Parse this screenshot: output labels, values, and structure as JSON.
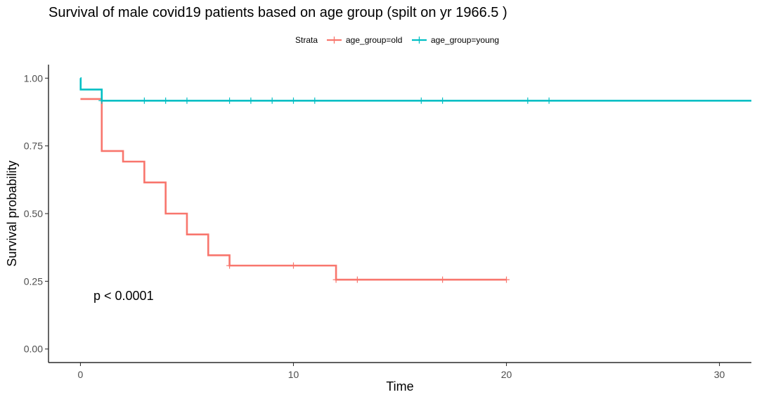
{
  "chart_data": {
    "type": "line",
    "subtype": "kaplan-meier-step",
    "title": "Survival of male covid19 patients based on age group (spilt on yr  1966.5  )",
    "xlabel": "Time",
    "ylabel": "Survival probability",
    "xlim": [
      -1.5,
      31.5
    ],
    "ylim": [
      -0.05,
      1.05
    ],
    "x_ticks": [
      0,
      10,
      20,
      30
    ],
    "y_ticks": [
      0.0,
      0.25,
      0.5,
      0.75,
      1.0
    ],
    "y_tick_labels": [
      "0.00",
      "0.25",
      "0.50",
      "0.75",
      "1.00"
    ],
    "grid": false,
    "legend": {
      "position": "top",
      "title": "Strata",
      "entries": [
        "age_group=old",
        "age_group=young"
      ]
    },
    "annotation": "p < 0.0001",
    "series": [
      {
        "name": "age_group=old",
        "color": "#F8766D",
        "steps": [
          [
            0,
            0.923
          ],
          [
            1,
            0.731
          ],
          [
            2,
            0.692
          ],
          [
            3,
            0.615
          ],
          [
            4,
            0.5
          ],
          [
            5,
            0.423
          ],
          [
            6,
            0.346
          ],
          [
            7,
            0.308
          ],
          [
            12,
            0.256
          ],
          [
            20,
            0.256
          ]
        ],
        "censor_times": [
          7,
          10,
          12,
          13,
          17,
          20
        ]
      },
      {
        "name": "age_group=young",
        "color": "#00BFC4",
        "steps": [
          [
            0,
            1.0
          ],
          [
            0.01,
            0.958
          ],
          [
            1,
            0.917
          ],
          [
            31.5,
            0.917
          ]
        ],
        "censor_times": [
          1,
          3,
          4,
          5,
          7,
          8,
          9,
          10,
          11,
          16,
          17,
          21,
          22
        ]
      }
    ]
  }
}
